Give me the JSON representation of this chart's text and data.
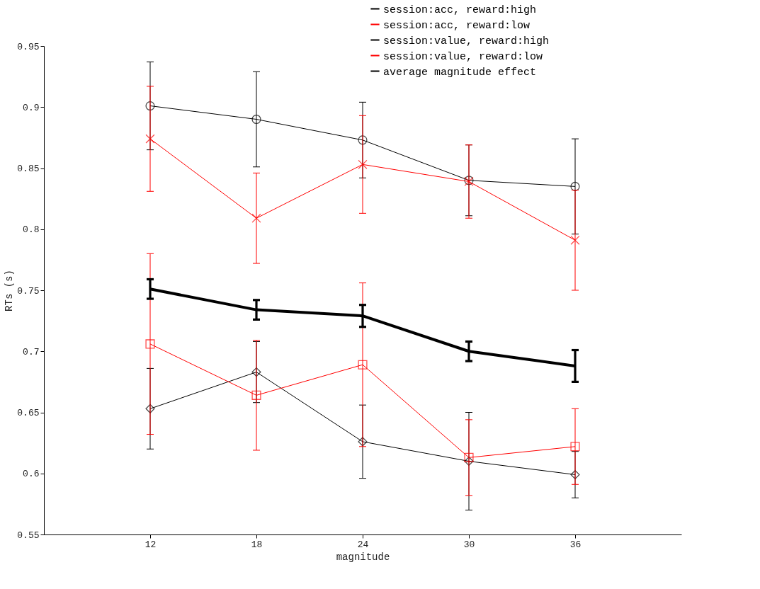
{
  "chart_data": {
    "type": "line",
    "xlabel": "magnitude",
    "ylabel": "RTs (s)",
    "x": [
      12,
      18,
      24,
      30,
      36
    ],
    "xlim": [
      6,
      42
    ],
    "xticks": [
      12,
      18,
      24,
      30,
      36
    ],
    "ylim": [
      0.55,
      0.95
    ],
    "yticks": [
      0.55,
      0.6,
      0.65,
      0.7,
      0.75,
      0.8,
      0.85,
      0.9,
      0.95
    ],
    "grid": false,
    "legend": "top right",
    "line_style": "solid",
    "series": [
      {
        "name": "session:acc, reward:high",
        "color": "#000000",
        "marker": "circle",
        "values": [
          0.901,
          0.89,
          0.873,
          0.84,
          0.835
        ],
        "errors": [
          0.036,
          0.039,
          0.031,
          0.029,
          0.039
        ]
      },
      {
        "name": "session:acc, reward:low",
        "color": "#ff0000",
        "marker": "cross",
        "values": [
          0.874,
          0.809,
          0.853,
          0.839,
          0.791
        ],
        "errors": [
          0.043,
          0.037,
          0.04,
          0.03,
          0.041
        ]
      },
      {
        "name": "session:value, reward:high",
        "color": "#000000",
        "marker": "diamond",
        "values": [
          0.653,
          0.683,
          0.626,
          0.61,
          0.599
        ],
        "errors": [
          0.033,
          0.025,
          0.03,
          0.04,
          0.019
        ]
      },
      {
        "name": "session:value, reward:low",
        "color": "#ff0000",
        "marker": "square",
        "values": [
          0.706,
          0.664,
          0.689,
          0.613,
          0.622
        ],
        "errors": [
          0.074,
          0.045,
          0.067,
          0.031,
          0.031
        ]
      },
      {
        "name": "average magnitude effect",
        "color": "#000000",
        "marker": "none",
        "values": [
          0.751,
          0.734,
          0.729,
          0.7,
          0.688
        ],
        "errors": [
          0.008,
          0.008,
          0.009,
          0.008,
          0.013
        ]
      }
    ]
  }
}
